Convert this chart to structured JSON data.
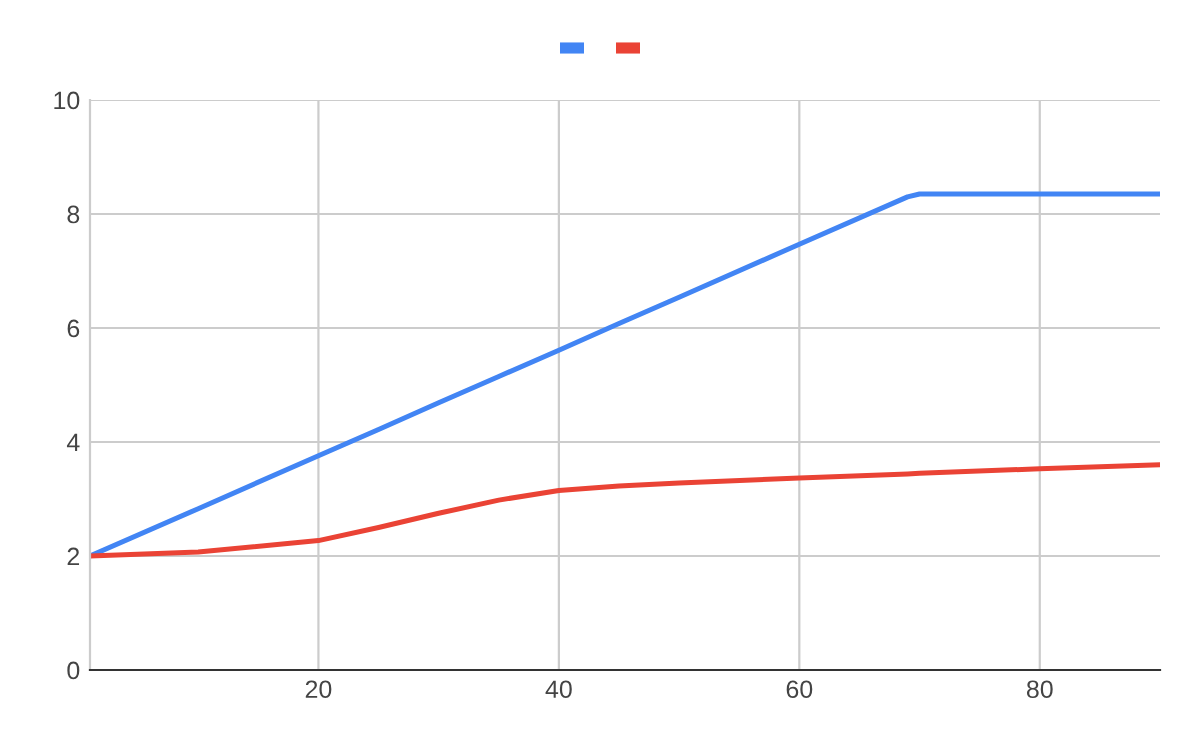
{
  "chart_data": {
    "type": "line",
    "x": [
      1,
      10,
      20,
      25,
      30,
      35,
      40,
      45,
      50,
      60,
      69,
      70,
      80,
      90
    ],
    "series": [
      {
        "color": "#4285f4",
        "values": [
          2,
          2.83,
          3.76,
          4.22,
          4.69,
          5.15,
          5.61,
          6.08,
          6.54,
          7.47,
          8.3,
          8.35,
          8.35,
          8.35
        ]
      },
      {
        "color": "#ea4335",
        "values": [
          2,
          2.07,
          2.27,
          2.5,
          2.75,
          2.98,
          3.15,
          3.23,
          3.28,
          3.37,
          3.44,
          3.45,
          3.53,
          3.6
        ]
      }
    ],
    "xlim": [
      1,
      90
    ],
    "xticks": [
      20,
      40,
      60,
      80
    ],
    "ylim": [
      0,
      10
    ],
    "yticks": [
      0,
      2,
      4,
      6,
      8,
      10
    ],
    "grid": true,
    "marker": "none",
    "line_style": "solid"
  }
}
